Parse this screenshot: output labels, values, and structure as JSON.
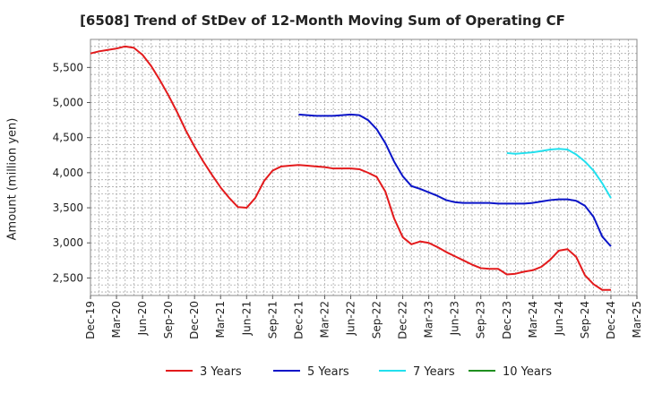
{
  "chart_data": {
    "type": "line",
    "title": "[6508]  Trend of StDev of 12-Month Moving Sum of Operating CF",
    "xlabel": "",
    "ylabel": "Amount (million yen)",
    "ylim": [
      2250,
      5900
    ],
    "y_ticks": [
      2500,
      3000,
      3500,
      4000,
      4500,
      5000,
      5500
    ],
    "y_tick_labels": [
      "2,500",
      "3,000",
      "3,500",
      "4,000",
      "4,500",
      "5,000",
      "5,500"
    ],
    "x_ticks": [
      "Dec-19",
      "Mar-20",
      "Jun-20",
      "Sep-20",
      "Dec-20",
      "Mar-21",
      "Jun-21",
      "Sep-21",
      "Dec-21",
      "Mar-22",
      "Jun-22",
      "Sep-22",
      "Dec-22",
      "Mar-23",
      "Jun-23",
      "Sep-23",
      "Dec-23",
      "Mar-24",
      "Jun-24",
      "Sep-24",
      "Dec-24",
      "Mar-25"
    ],
    "grid": true,
    "legend_position": "bottom",
    "series": [
      {
        "name": "3 Years",
        "color": "#e31a1c",
        "x": [
          "Dec-19",
          "Jan-20",
          "Feb-20",
          "Mar-20",
          "Apr-20",
          "May-20",
          "Jun-20",
          "Jul-20",
          "Aug-20",
          "Sep-20",
          "Oct-20",
          "Nov-20",
          "Dec-20",
          "Jan-21",
          "Feb-21",
          "Mar-21",
          "Apr-21",
          "May-21",
          "Jun-21",
          "Jul-21",
          "Aug-21",
          "Sep-21",
          "Oct-21",
          "Nov-21",
          "Dec-21",
          "Jan-22",
          "Feb-22",
          "Mar-22",
          "Apr-22",
          "May-22",
          "Jun-22",
          "Jul-22",
          "Aug-22",
          "Sep-22",
          "Oct-22",
          "Nov-22",
          "Dec-22",
          "Jan-23",
          "Feb-23",
          "Mar-23",
          "Apr-23",
          "May-23",
          "Jun-23",
          "Jul-23",
          "Aug-23",
          "Sep-23",
          "Oct-23",
          "Nov-23",
          "Dec-23",
          "Jan-24",
          "Feb-24",
          "Mar-24",
          "Apr-24",
          "May-24",
          "Jun-24",
          "Jul-24",
          "Aug-24",
          "Sep-24",
          "Oct-24",
          "Nov-24",
          "Dec-24"
        ],
        "values": [
          5700,
          5730,
          5750,
          5770,
          5800,
          5780,
          5680,
          5520,
          5320,
          5100,
          4860,
          4600,
          4370,
          4160,
          3970,
          3790,
          3640,
          3510,
          3500,
          3640,
          3880,
          4030,
          4090,
          4100,
          4110,
          4100,
          4090,
          4080,
          4060,
          4060,
          4060,
          4050,
          4000,
          3940,
          3730,
          3350,
          3080,
          2980,
          3020,
          3000,
          2940,
          2870,
          2810,
          2750,
          2690,
          2640,
          2630,
          2630,
          2550,
          2560,
          2590,
          2610,
          2660,
          2760,
          2890,
          2910,
          2800,
          2540,
          2410,
          2330,
          2330
        ]
      },
      {
        "name": "5 Years",
        "color": "#0a14c8",
        "x": [
          "Dec-21",
          "Jan-22",
          "Feb-22",
          "Mar-22",
          "Apr-22",
          "May-22",
          "Jun-22",
          "Jul-22",
          "Aug-22",
          "Sep-22",
          "Oct-22",
          "Nov-22",
          "Dec-22",
          "Jan-23",
          "Feb-23",
          "Mar-23",
          "Apr-23",
          "May-23",
          "Jun-23",
          "Jul-23",
          "Aug-23",
          "Sep-23",
          "Oct-23",
          "Nov-23",
          "Dec-23",
          "Jan-24",
          "Feb-24",
          "Mar-24",
          "Apr-24",
          "May-24",
          "Jun-24",
          "Jul-24",
          "Aug-24",
          "Sep-24",
          "Oct-24",
          "Nov-24",
          "Dec-24"
        ],
        "values": [
          4830,
          4820,
          4810,
          4810,
          4810,
          4820,
          4830,
          4820,
          4750,
          4620,
          4420,
          4160,
          3950,
          3810,
          3770,
          3720,
          3670,
          3610,
          3580,
          3570,
          3570,
          3570,
          3570,
          3560,
          3560,
          3560,
          3560,
          3570,
          3590,
          3610,
          3620,
          3620,
          3600,
          3530,
          3370,
          3090,
          2950
        ]
      },
      {
        "name": "7 Years",
        "color": "#22e0ee",
        "x": [
          "Dec-23",
          "Jan-24",
          "Feb-24",
          "Mar-24",
          "Apr-24",
          "May-24",
          "Jun-24",
          "Jul-24",
          "Aug-24",
          "Sep-24",
          "Oct-24",
          "Nov-24",
          "Dec-24"
        ],
        "values": [
          4280,
          4270,
          4280,
          4290,
          4310,
          4330,
          4340,
          4330,
          4260,
          4160,
          4030,
          3850,
          3640
        ]
      },
      {
        "name": "10 Years",
        "color": "#1f8f1f",
        "x": [],
        "values": []
      }
    ]
  }
}
